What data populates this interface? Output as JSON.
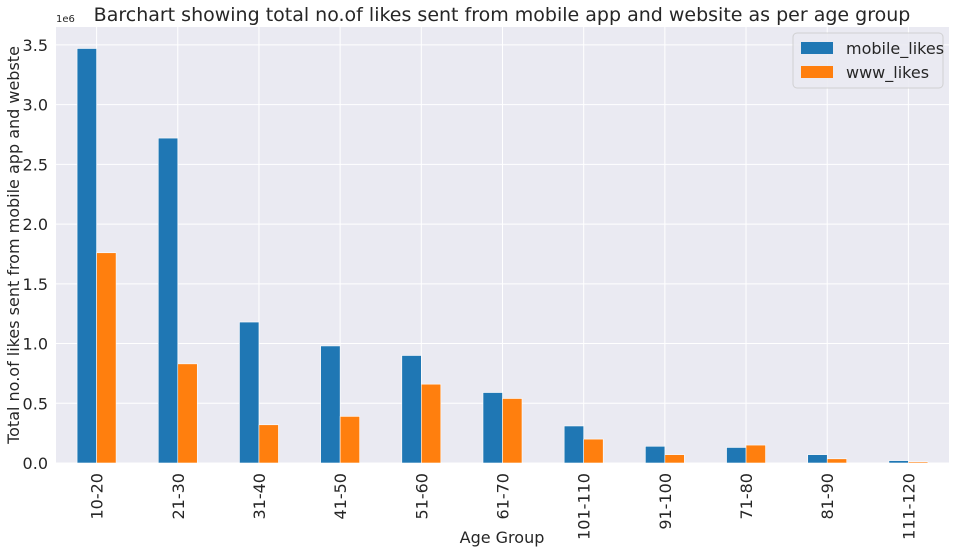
{
  "chart_data": {
    "type": "bar",
    "title": "Barchart showing total no.of likes sent from mobile app and website as per age group",
    "xlabel": "Age Group",
    "ylabel": "Total no.of likes sent from mobile app and webste",
    "y_multiplier_label": "1e6",
    "ylim": [
      0,
      3.65
    ],
    "yticks": [
      0.0,
      0.5,
      1.0,
      1.5,
      2.0,
      2.5,
      3.0,
      3.5
    ],
    "ytick_labels": [
      "0.0",
      "0.5",
      "1.0",
      "1.5",
      "2.0",
      "2.5",
      "3.0",
      "3.5"
    ],
    "grid": true,
    "legend_position": "top-right",
    "categories": [
      "10-20",
      "21-30",
      "31-40",
      "41-50",
      "51-60",
      "61-70",
      "101-110",
      "91-100",
      "71-80",
      "81-90",
      "111-120"
    ],
    "series": [
      {
        "name": "mobile_likes",
        "color": "#1f77b4",
        "values": [
          3.47,
          2.72,
          1.18,
          0.98,
          0.9,
          0.59,
          0.31,
          0.14,
          0.13,
          0.07,
          0.02
        ]
      },
      {
        "name": "www_likes",
        "color": "#ff7f0e",
        "values": [
          1.76,
          0.83,
          0.32,
          0.39,
          0.66,
          0.54,
          0.2,
          0.07,
          0.15,
          0.035,
          0.01
        ]
      }
    ]
  }
}
